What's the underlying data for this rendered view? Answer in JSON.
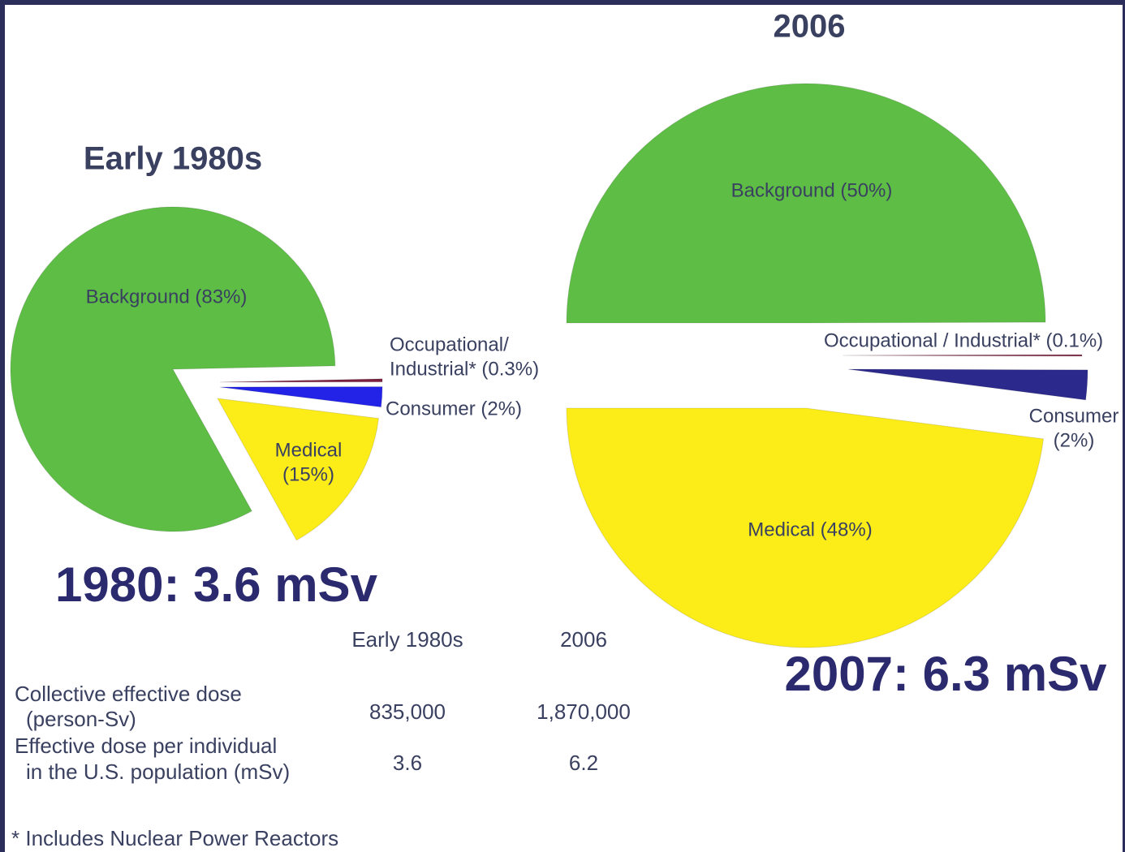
{
  "chart_data": [
    {
      "type": "pie",
      "title": "Early 1980s",
      "values": [
        83,
        0.3,
        2,
        15
      ],
      "value_labels": [
        "Background (83%)",
        [
          "Occupational/",
          "Industrial* (0.3%)"
        ],
        "Consumer (2%)",
        [
          "Medical",
          "(15%)"
        ]
      ],
      "colors": [
        "#5dbd45",
        "#7a1f3d",
        "#2323e8",
        "#fcec17"
      ],
      "annotation": "1980: 3.6 mSv"
    },
    {
      "type": "pie",
      "title": "2006",
      "values": [
        50,
        0.1,
        2,
        48
      ],
      "value_labels": [
        "Background (50%)",
        "Occupational / Industrial* (0.1%)",
        [
          "Consumer",
          "(2%)"
        ],
        "Medical (48%)"
      ],
      "colors": [
        "#5dbd45",
        "#7a1f3d",
        "#2b2a8c",
        "#fcec17"
      ],
      "annotation": "2007: 6.3 mSv"
    }
  ],
  "table": {
    "header": [
      "Early 1980s",
      "2006"
    ],
    "rows": [
      {
        "label": [
          "Collective effective dose",
          "(person-Sv)"
        ],
        "values": [
          "835,000",
          "1,870,000"
        ]
      },
      {
        "label": [
          "Effective dose per individual",
          "in the U.S. population (mSv)"
        ],
        "values": [
          "3.6",
          "6.2"
        ]
      }
    ],
    "footnote": "* Includes Nuclear Power Reactors"
  }
}
